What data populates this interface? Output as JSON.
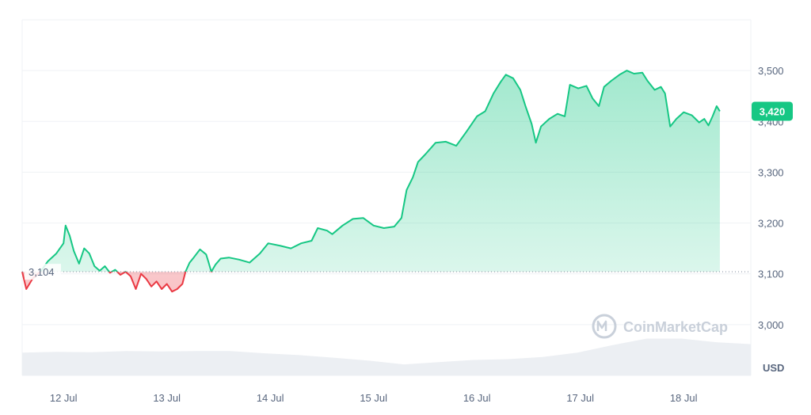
{
  "chart_data": {
    "type": "area",
    "currency": "USD",
    "reference_value": 3104,
    "reference_label": "3,104",
    "current_value": 3420,
    "current_label": "3,420",
    "ylim": [
      2900,
      3600
    ],
    "y_ticks": [
      3000,
      3100,
      3200,
      3300,
      3400,
      3500
    ],
    "y_tick_labels": [
      "3,000",
      "3,100",
      "3,200",
      "3,300",
      "3,400",
      "3,500"
    ],
    "x_ticks": [
      {
        "x": 0.4,
        "label": "12 Jul"
      },
      {
        "x": 1.4,
        "label": "13 Jul"
      },
      {
        "x": 2.4,
        "label": "14 Jul"
      },
      {
        "x": 3.4,
        "label": "15 Jul"
      },
      {
        "x": 4.4,
        "label": "16 Jul"
      },
      {
        "x": 5.4,
        "label": "17 Jul"
      },
      {
        "x": 6.4,
        "label": "18 Jul"
      }
    ],
    "xlim": [
      0,
      7.05
    ],
    "colors": {
      "up": "#16c784",
      "down": "#ea3943",
      "grid": "#eff2f5",
      "volume": "#eceff3"
    },
    "series": [
      {
        "values": [
          [
            0.0,
            3104
          ],
          [
            0.04,
            3070
          ],
          [
            0.1,
            3090
          ],
          [
            0.18,
            3105
          ],
          [
            0.25,
            3125
          ],
          [
            0.33,
            3140
          ],
          [
            0.4,
            3160
          ],
          [
            0.42,
            3195
          ],
          [
            0.46,
            3175
          ],
          [
            0.5,
            3145
          ],
          [
            0.55,
            3120
          ],
          [
            0.6,
            3150
          ],
          [
            0.65,
            3140
          ],
          [
            0.7,
            3115
          ],
          [
            0.75,
            3106
          ],
          [
            0.8,
            3115
          ],
          [
            0.85,
            3102
          ],
          [
            0.9,
            3108
          ],
          [
            0.95,
            3098
          ],
          [
            1.0,
            3104
          ],
          [
            1.05,
            3095
          ],
          [
            1.1,
            3070
          ],
          [
            1.15,
            3100
          ],
          [
            1.2,
            3090
          ],
          [
            1.25,
            3075
          ],
          [
            1.3,
            3085
          ],
          [
            1.35,
            3070
          ],
          [
            1.4,
            3080
          ],
          [
            1.45,
            3065
          ],
          [
            1.5,
            3070
          ],
          [
            1.55,
            3080
          ],
          [
            1.58,
            3104
          ],
          [
            1.62,
            3122
          ],
          [
            1.66,
            3132
          ],
          [
            1.72,
            3148
          ],
          [
            1.78,
            3138
          ],
          [
            1.8,
            3125
          ],
          [
            1.83,
            3104
          ],
          [
            1.87,
            3118
          ],
          [
            1.92,
            3130
          ],
          [
            2.0,
            3132
          ],
          [
            2.1,
            3128
          ],
          [
            2.2,
            3122
          ],
          [
            2.3,
            3140
          ],
          [
            2.38,
            3160
          ],
          [
            2.5,
            3155
          ],
          [
            2.6,
            3150
          ],
          [
            2.7,
            3160
          ],
          [
            2.8,
            3165
          ],
          [
            2.86,
            3190
          ],
          [
            2.95,
            3185
          ],
          [
            3.0,
            3178
          ],
          [
            3.1,
            3195
          ],
          [
            3.2,
            3208
          ],
          [
            3.3,
            3210
          ],
          [
            3.4,
            3195
          ],
          [
            3.5,
            3190
          ],
          [
            3.6,
            3193
          ],
          [
            3.67,
            3210
          ],
          [
            3.72,
            3265
          ],
          [
            3.78,
            3290
          ],
          [
            3.83,
            3320
          ],
          [
            3.9,
            3335
          ],
          [
            4.0,
            3358
          ],
          [
            4.1,
            3360
          ],
          [
            4.2,
            3352
          ],
          [
            4.3,
            3380
          ],
          [
            4.4,
            3410
          ],
          [
            4.48,
            3420
          ],
          [
            4.56,
            3455
          ],
          [
            4.63,
            3478
          ],
          [
            4.68,
            3492
          ],
          [
            4.75,
            3485
          ],
          [
            4.82,
            3462
          ],
          [
            4.87,
            3430
          ],
          [
            4.93,
            3395
          ],
          [
            4.97,
            3358
          ],
          [
            5.02,
            3390
          ],
          [
            5.1,
            3405
          ],
          [
            5.18,
            3415
          ],
          [
            5.25,
            3410
          ],
          [
            5.3,
            3472
          ],
          [
            5.38,
            3465
          ],
          [
            5.46,
            3470
          ],
          [
            5.52,
            3445
          ],
          [
            5.58,
            3430
          ],
          [
            5.63,
            3468
          ],
          [
            5.7,
            3480
          ],
          [
            5.78,
            3492
          ],
          [
            5.85,
            3500
          ],
          [
            5.92,
            3494
          ],
          [
            6.0,
            3496
          ],
          [
            6.05,
            3480
          ],
          [
            6.12,
            3462
          ],
          [
            6.18,
            3468
          ],
          [
            6.22,
            3455
          ],
          [
            6.27,
            3390
          ],
          [
            6.33,
            3405
          ],
          [
            6.4,
            3418
          ],
          [
            6.48,
            3412
          ],
          [
            6.55,
            3398
          ],
          [
            6.6,
            3405
          ],
          [
            6.64,
            3392
          ],
          [
            6.68,
            3410
          ],
          [
            6.72,
            3430
          ],
          [
            6.75,
            3420
          ]
        ]
      },
      {
        "name": "Volume",
        "values": [
          0.62,
          0.64,
          0.63,
          0.66,
          0.65,
          0.66,
          0.66,
          0.6,
          0.55,
          0.48,
          0.4,
          0.3,
          0.36,
          0.42,
          0.44,
          0.5,
          0.62,
          0.82,
          1.0,
          1.0,
          0.9,
          0.85
        ]
      }
    ]
  },
  "watermark": {
    "text": "CoinMarketCap",
    "icon": "coinmarketcap-logo-icon"
  }
}
